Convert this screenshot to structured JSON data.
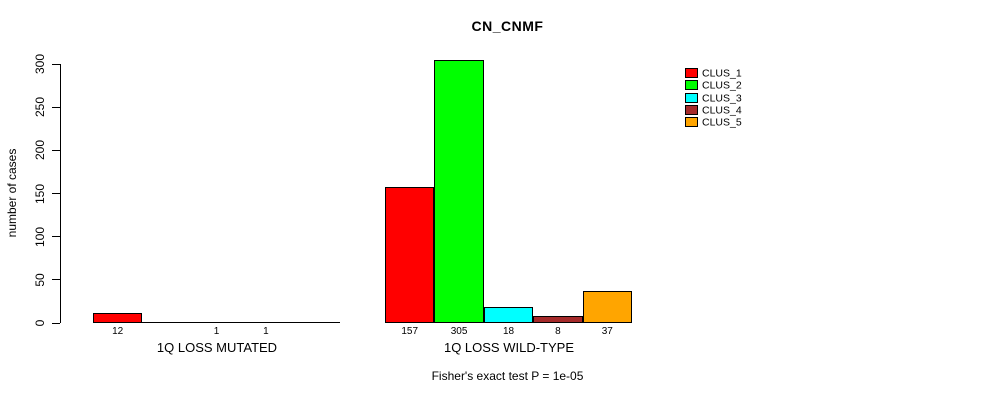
{
  "chart_data": {
    "type": "bar",
    "title": "CN_CNMF",
    "ylabel": "number of cases",
    "xlabel": "",
    "ylim": [
      0,
      300
    ],
    "yticks": [
      0,
      50,
      100,
      150,
      200,
      250,
      300
    ],
    "grid": false,
    "axis_color": "#000000",
    "legend_position": "top-right",
    "clusters": [
      {
        "name": "CLUS_1",
        "color": "#FF0000"
      },
      {
        "name": "CLUS_2",
        "color": "#00FF00"
      },
      {
        "name": "CLUS_3",
        "color": "#00FFFF"
      },
      {
        "name": "CLUS_4",
        "color": "#A52A2A"
      },
      {
        "name": "CLUS_5",
        "color": "#FFA500"
      }
    ],
    "groups": [
      {
        "label": "1Q LOSS MUTATED",
        "values": [
          12,
          0,
          1,
          1,
          0
        ],
        "bar_labels": [
          "12",
          "",
          "1",
          "1",
          ""
        ]
      },
      {
        "label": "1Q LOSS WILD-TYPE",
        "values": [
          157,
          305,
          18,
          8,
          37
        ],
        "bar_labels": [
          "157",
          "305",
          "18",
          "8",
          "37"
        ]
      }
    ],
    "footnote": "Fisher's exact test P = 1e-05"
  }
}
